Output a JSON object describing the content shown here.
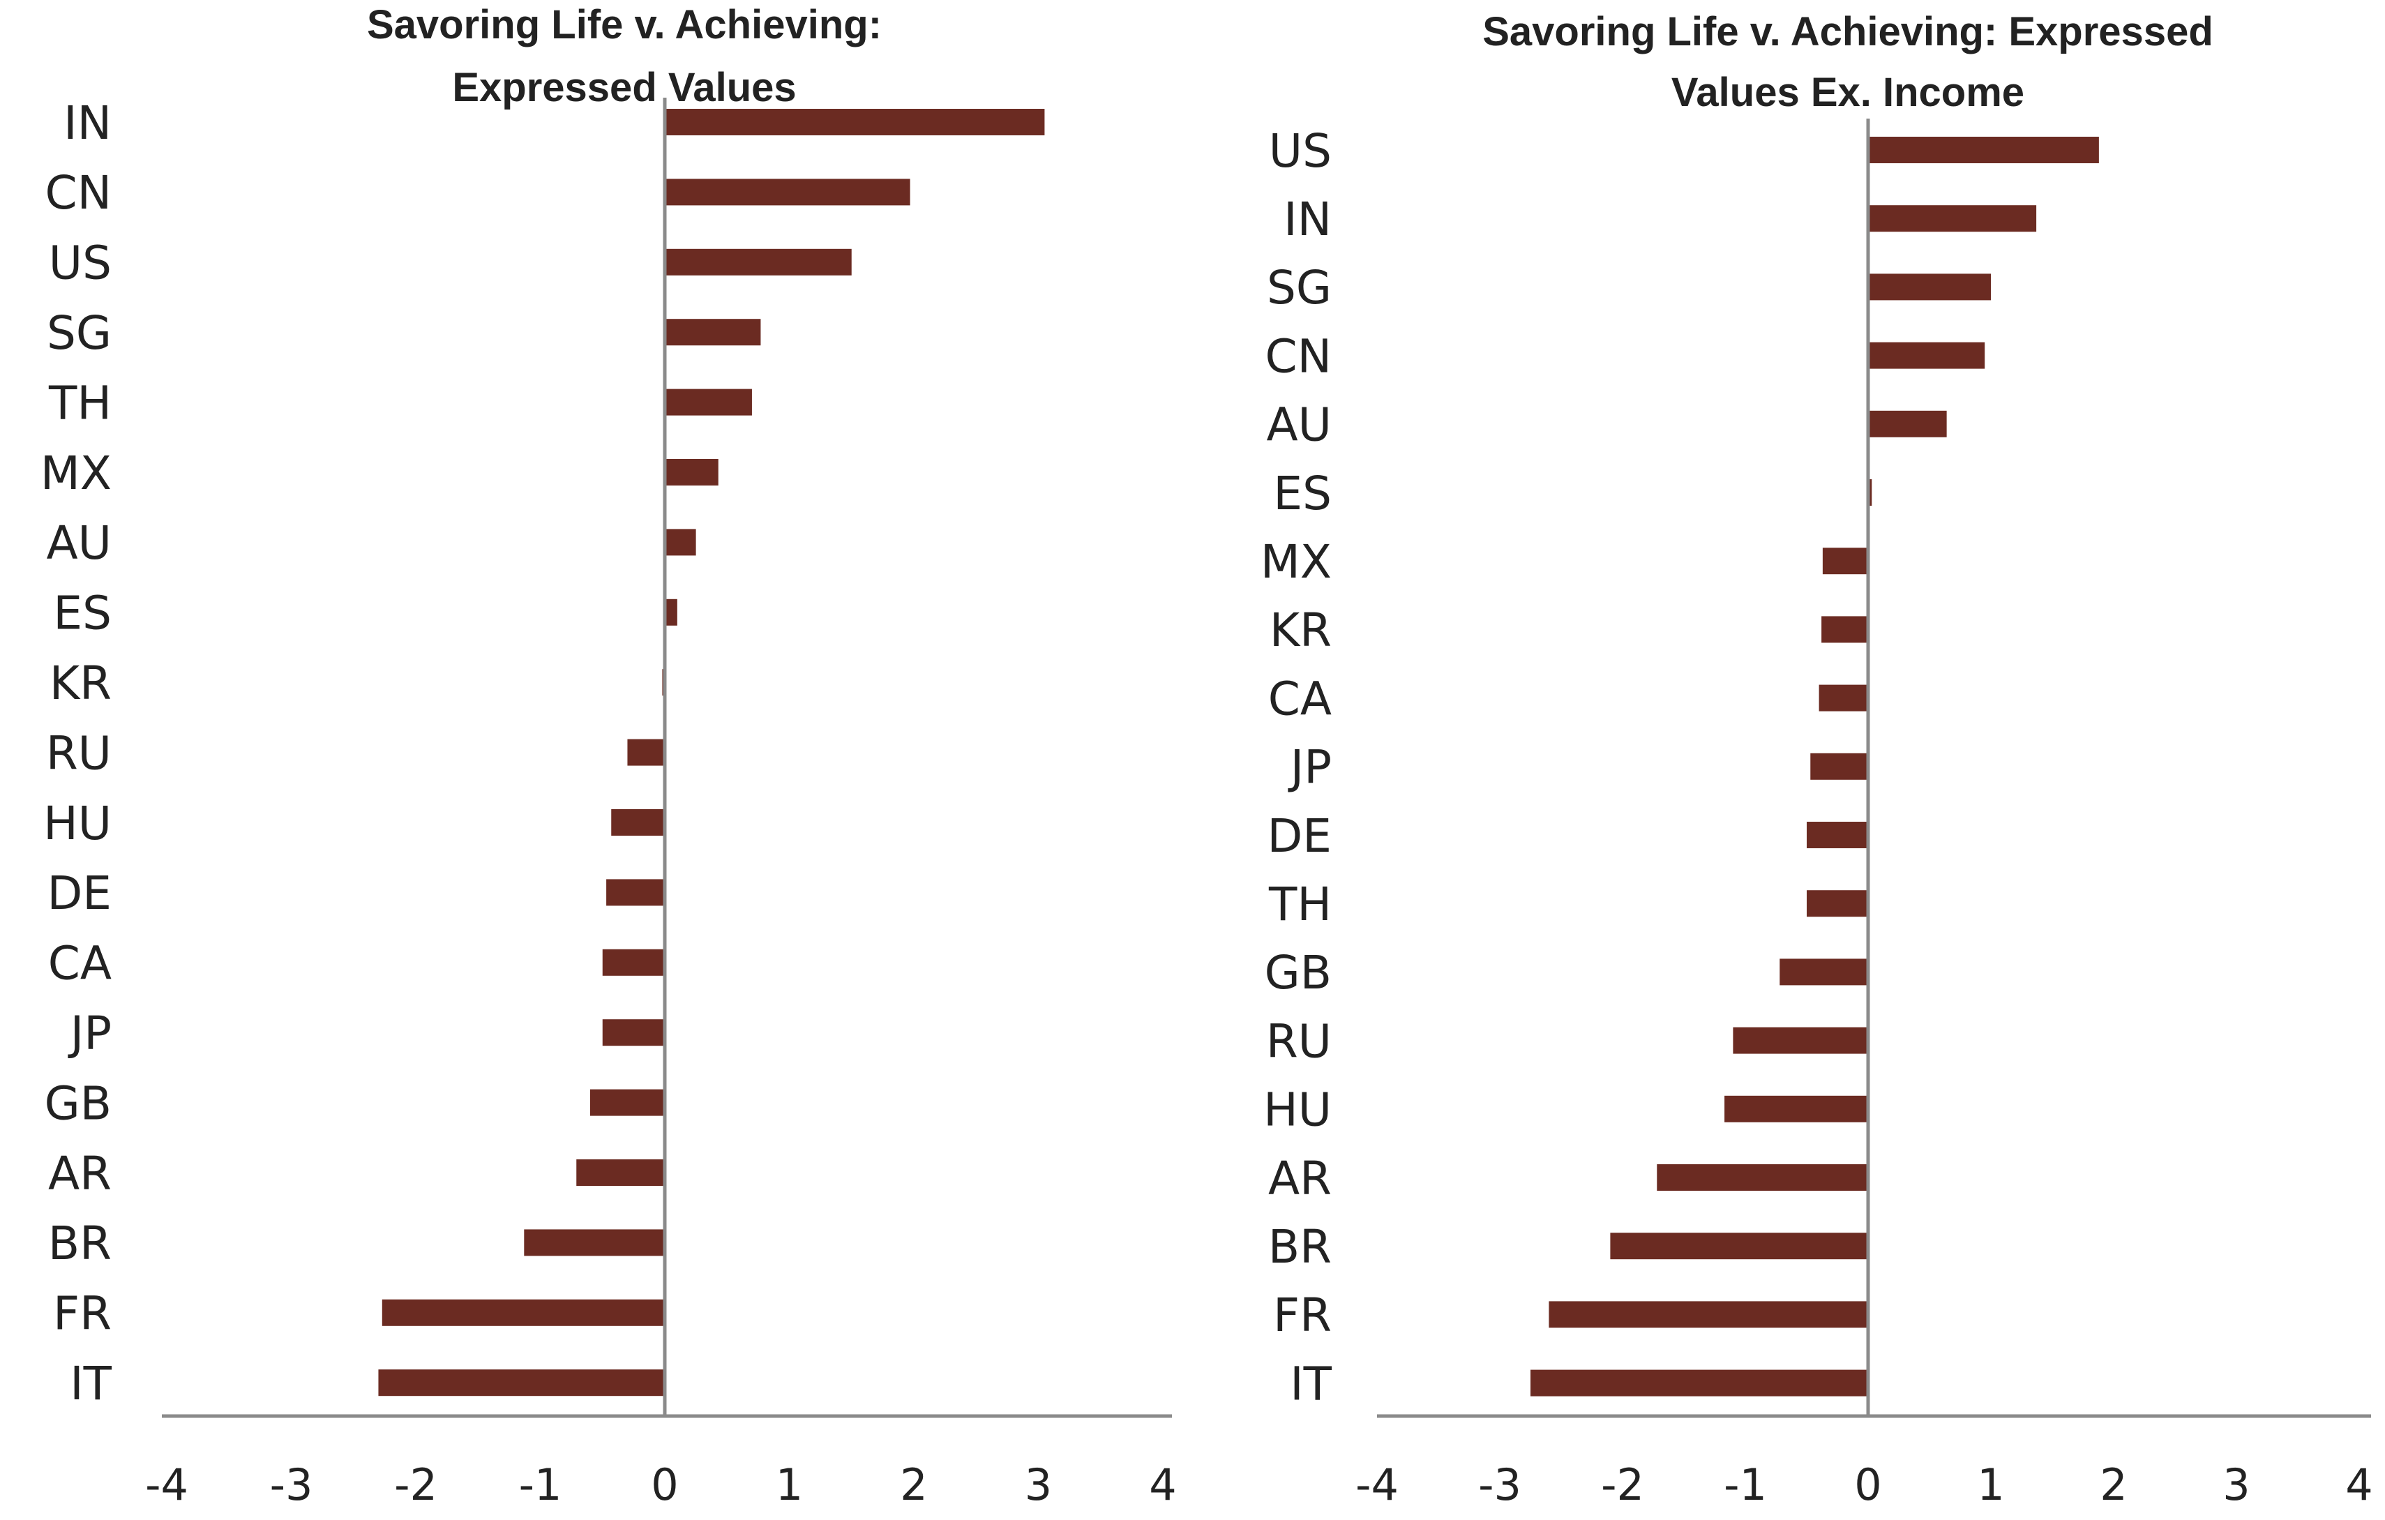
{
  "chart_data": [
    {
      "type": "bar",
      "orientation": "horizontal",
      "title_lines": [
        "Savoring Life v. Achieving:",
        "Expressed Values"
      ],
      "xlabel": "",
      "ylabel": "",
      "xlim": [
        -4,
        4
      ],
      "xticks": [
        "-4",
        "-3",
        "-2",
        "-1",
        "0",
        "1",
        "2",
        "3",
        "4"
      ],
      "grid": false,
      "legend": "none",
      "bar_color": "#6b2b22",
      "categories": [
        "IN",
        "CN",
        "US",
        "SG",
        "TH",
        "MX",
        "AU",
        "ES",
        "KR",
        "RU",
        "HU",
        "DE",
        "CA",
        "JP",
        "GB",
        "AR",
        "BR",
        "FR",
        "IT"
      ],
      "values": [
        3.05,
        1.97,
        1.5,
        0.77,
        0.7,
        0.43,
        0.25,
        0.1,
        -0.02,
        -0.3,
        -0.43,
        -0.47,
        -0.5,
        -0.5,
        -0.6,
        -0.71,
        -1.13,
        -2.27,
        -2.3
      ]
    },
    {
      "type": "bar",
      "orientation": "horizontal",
      "title_lines": [
        "Savoring Life v. Achieving: Expressed",
        "Values Ex. Income"
      ],
      "xlabel": "",
      "ylabel": "",
      "xlim": [
        -4,
        4
      ],
      "xticks": [
        "-4",
        "-3",
        "-2",
        "-1",
        "0",
        "1",
        "2",
        "3",
        "4"
      ],
      "grid": false,
      "legend": "none",
      "bar_color": "#6b2b22",
      "categories": [
        "US",
        "IN",
        "SG",
        "CN",
        "AU",
        "ES",
        "MX",
        "KR",
        "CA",
        "JP",
        "DE",
        "TH",
        "GB",
        "RU",
        "HU",
        "AR",
        "BR",
        "FR",
        "IT"
      ],
      "values": [
        1.88,
        1.37,
        1.0,
        0.95,
        0.64,
        0.03,
        -0.37,
        -0.38,
        -0.4,
        -0.47,
        -0.5,
        -0.5,
        -0.72,
        -1.1,
        -1.17,
        -1.72,
        -2.1,
        -2.6,
        -2.75
      ]
    }
  ]
}
